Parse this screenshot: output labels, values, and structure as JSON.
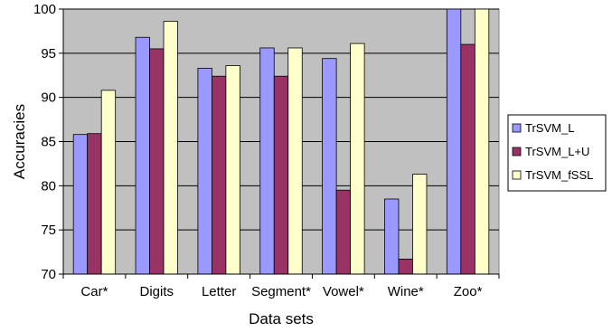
{
  "chart_data": {
    "type": "bar",
    "xlabel": "Data sets",
    "ylabel": "Accuracies",
    "ylim": [
      70,
      100
    ],
    "yticks": [
      70,
      75,
      80,
      85,
      90,
      95,
      100
    ],
    "grid": true,
    "legend_position": "right",
    "categories": [
      "Car*",
      "Digits",
      "Letter",
      "Segment*",
      "Vowel*",
      "Wine*",
      "Zoo*"
    ],
    "series": [
      {
        "name": "TrSVM_L",
        "color": "#9999ff",
        "values": [
          85.8,
          96.8,
          93.3,
          95.6,
          94.4,
          78.5,
          100
        ]
      },
      {
        "name": "TrSVM_L+U",
        "color": "#993366",
        "values": [
          85.9,
          95.5,
          92.4,
          92.4,
          79.5,
          71.7,
          96.0
        ]
      },
      {
        "name": "TrSVM_fSSL",
        "color": "#ffffcc",
        "values": [
          90.8,
          98.6,
          93.6,
          95.6,
          96.1,
          81.3,
          100
        ]
      }
    ],
    "plot_background": "#c0c0c0"
  }
}
